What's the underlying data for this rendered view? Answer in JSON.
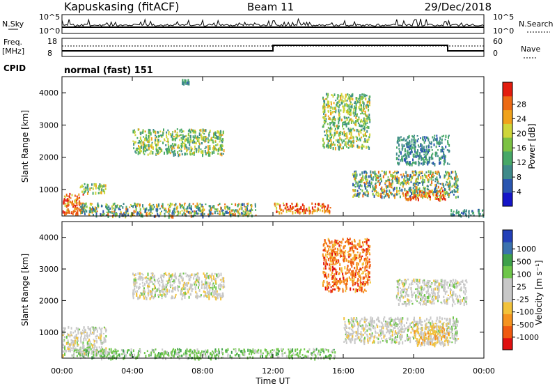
{
  "header": {
    "station": "Kapuskasing (fitACF)",
    "beam": "Beam 11",
    "date": "29/Dec/2018"
  },
  "top_strip": {
    "left_label": "N.Sky",
    "left_ticks": [
      "10^5",
      "10^0"
    ],
    "right_ticks": [
      "10^5",
      "10^0"
    ],
    "right_label": "N.Search"
  },
  "freq_strip": {
    "left_label_line1": "Freq.",
    "left_label_line2": "[MHz]",
    "left_ticks": [
      "18",
      "8"
    ],
    "right_ticks": [
      "60",
      "0"
    ],
    "right_label": "Nave"
  },
  "cpid": {
    "label": "CPID",
    "value": "normal (fast) 151"
  },
  "x_axis": {
    "ticks": [
      "00:00",
      "04:00",
      "08:00",
      "12:00",
      "16:00",
      "20:00",
      "00:00"
    ],
    "label": "Time UT"
  },
  "colors": {
    "power_scale": [
      "#1515c8",
      "#2a56b0",
      "#3f8a8a",
      "#47a868",
      "#7cc244",
      "#cfd63a",
      "#f0a21c",
      "#ec6a14",
      "#e31c0e"
    ],
    "velocity_scale": [
      "#e01010",
      "#f05a10",
      "#f5931f",
      "#f2c23a",
      "#c8c8c8",
      "#c8c8c8",
      "#6ec64a",
      "#3ea04a",
      "#3b72ae",
      "#2340b8"
    ]
  },
  "chart_data": [
    {
      "type": "heatmap",
      "ylabel": "Slant Range [km]",
      "y_ticks": [
        "1000",
        "2000",
        "3000",
        "4000"
      ],
      "ylim": [
        180,
        4500
      ],
      "xlim": [
        0,
        24
      ],
      "colorbar_label": "Power [dB]",
      "colorbar_ticks": [
        "4",
        "8",
        "12",
        "16",
        "20",
        "24",
        "28"
      ],
      "regions": [
        {
          "x": [
            0.0,
            1.2
          ],
          "y": [
            250,
            900
          ],
          "level": "high"
        },
        {
          "x": [
            1.0,
            2.5
          ],
          "y": [
            900,
            1200
          ],
          "level": "mid"
        },
        {
          "x": [
            4.0,
            9.2
          ],
          "y": [
            2100,
            2900
          ],
          "level": "mid"
        },
        {
          "x": [
            6.8,
            7.2
          ],
          "y": [
            4300,
            4450
          ],
          "level": "low"
        },
        {
          "x": [
            1.0,
            11.0
          ],
          "y": [
            200,
            600
          ],
          "level": "mixed"
        },
        {
          "x": [
            12.0,
            15.3
          ],
          "y": [
            300,
            600
          ],
          "level": "high"
        },
        {
          "x": [
            14.8,
            17.5
          ],
          "y": [
            2300,
            4000
          ],
          "level": "mid"
        },
        {
          "x": [
            16.5,
            22.5
          ],
          "y": [
            800,
            1600
          ],
          "level": "mixed"
        },
        {
          "x": [
            19.5,
            21.8
          ],
          "y": [
            700,
            1000
          ],
          "level": "high"
        },
        {
          "x": [
            19.0,
            22.0
          ],
          "y": [
            1800,
            2700
          ],
          "level": "low"
        },
        {
          "x": [
            22.0,
            24.0
          ],
          "y": [
            200,
            400
          ],
          "level": "low"
        }
      ]
    },
    {
      "type": "heatmap",
      "ylabel": "Slant Range [km]",
      "y_ticks": [
        "1000",
        "2000",
        "3000",
        "4000"
      ],
      "ylim": [
        180,
        4500
      ],
      "xlim": [
        0,
        24
      ],
      "colorbar_label": "Velocity [m s⁻¹]",
      "colorbar_ticks": [
        "-1000",
        "-500",
        "-100",
        "-25",
        "25",
        "100",
        "500",
        "1000"
      ],
      "regions": [
        {
          "x": [
            0.0,
            2.5
          ],
          "y": [
            300,
            1200
          ],
          "level": "grey"
        },
        {
          "x": [
            4.0,
            9.2
          ],
          "y": [
            2100,
            2900
          ],
          "level": "grey"
        },
        {
          "x": [
            0.5,
            15.5
          ],
          "y": [
            200,
            500
          ],
          "level": "green"
        },
        {
          "x": [
            14.8,
            17.5
          ],
          "y": [
            2300,
            4000
          ],
          "level": "orange"
        },
        {
          "x": [
            16.0,
            22.5
          ],
          "y": [
            700,
            1500
          ],
          "level": "grey"
        },
        {
          "x": [
            20.0,
            22.0
          ],
          "y": [
            600,
            1300
          ],
          "level": "yellow"
        },
        {
          "x": [
            19.0,
            23.0
          ],
          "y": [
            1900,
            2700
          ],
          "level": "grey"
        }
      ]
    }
  ]
}
